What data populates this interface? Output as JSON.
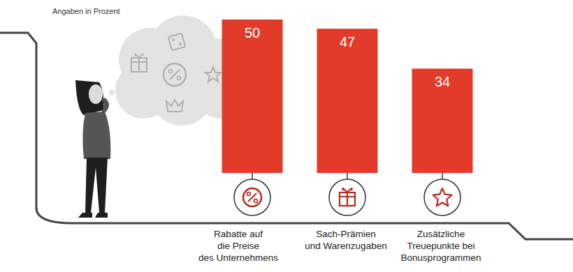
{
  "chart_data": {
    "type": "bar",
    "subtitle": "Angaben in Prozent",
    "categories": [
      "Rabatte auf\ndie Preise\ndes Unternehmens",
      "Sach-Prämien\nund Warenzugaben",
      "Zusätzliche\nTreuepunkte bei\nBonusprogrammen"
    ],
    "values": [
      50,
      47,
      34
    ],
    "color": "#e23b2a",
    "ylim": [
      0,
      50
    ],
    "data_labels": true,
    "tick_labels": false,
    "grid": false
  }
}
